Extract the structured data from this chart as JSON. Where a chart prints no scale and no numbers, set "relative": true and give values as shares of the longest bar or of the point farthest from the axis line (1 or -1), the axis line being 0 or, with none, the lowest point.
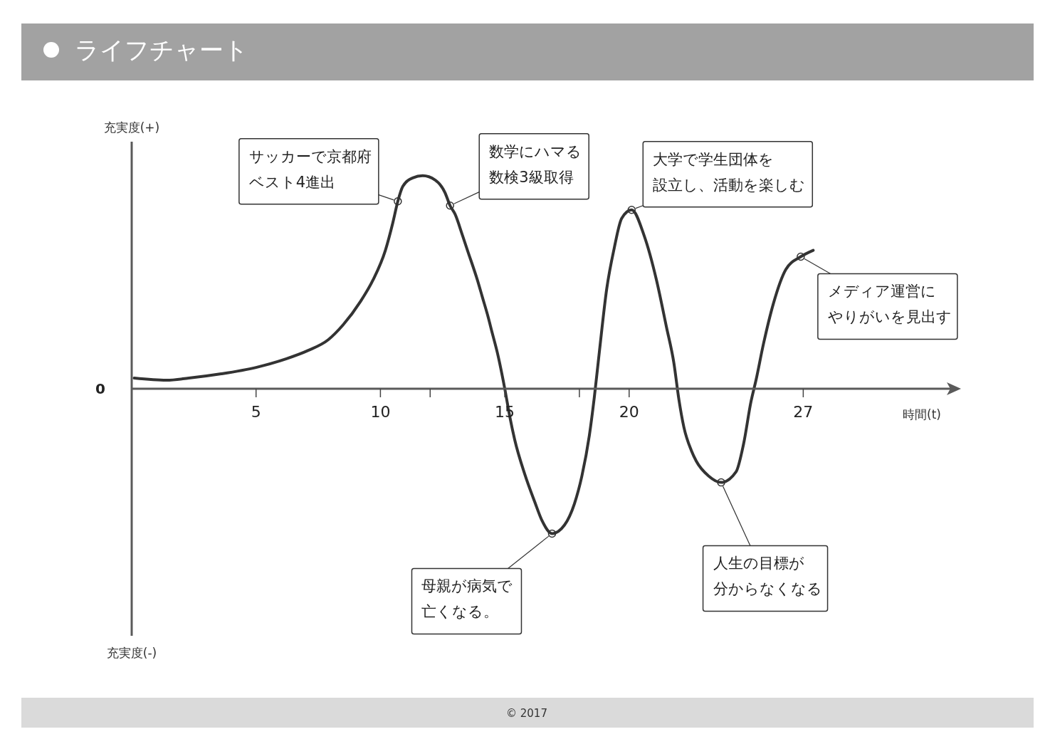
{
  "chart_data": {
    "type": "line",
    "title": "ライフチャート",
    "xlabel": "時間(t)",
    "ylabel": "充実度(+)",
    "relative": true,
    "x": [
      0.1,
      1.4,
      2.3,
      3.6,
      5.0,
      6.2,
      7.1,
      7.9,
      8.5,
      9.2,
      9.7,
      10.2,
      10.5,
      10.7,
      10.9,
      11.3,
      11.7,
      12.2,
      12.6,
      12.8,
      13.0,
      13.3,
      13.5,
      13.9,
      14.1,
      14.3,
      14.5,
      14.7,
      15.0,
      15.2,
      15.4,
      15.8,
      16.2,
      16.5,
      16.9,
      17.4,
      17.8,
      18.1,
      18.4,
      18.6,
      18.8,
      19.1,
      19.4,
      19.7,
      20.1,
      20.6,
      21.1,
      21.5,
      21.8,
      22.0,
      22.2,
      22.5,
      22.7,
      23.2,
      23.7,
      24.3,
      24.6,
      24.9,
      25.1,
      25.4,
      25.8,
      26.3,
      26.9,
      27.4
    ],
    "series": [
      {
        "color": "#333333",
        "values": [
          0.05,
          0.04,
          0.05,
          0.07,
          0.1,
          0.14,
          0.18,
          0.23,
          0.3,
          0.41,
          0.51,
          0.65,
          0.78,
          0.88,
          0.95,
          0.99,
          1,
          0.98,
          0.92,
          0.86,
          0.82,
          0.72,
          0.65,
          0.51,
          0.43,
          0.35,
          0.26,
          0.17,
          0,
          -0.13,
          -0.24,
          -0.4,
          -0.53,
          -0.62,
          -0.68,
          -0.64,
          -0.54,
          -0.41,
          -0.22,
          -0.04,
          0.17,
          0.47,
          0.66,
          0.8,
          0.84,
          0.72,
          0.51,
          0.29,
          0.12,
          -0.05,
          -0.18,
          -0.29,
          -0.34,
          -0.41,
          -0.44,
          -0.39,
          -0.26,
          -0.06,
          0.04,
          0.21,
          0.4,
          0.56,
          0.62,
          0.65
        ]
      }
    ],
    "xlim": [
      0,
      33
    ],
    "xticks": [
      5,
      10,
      {
        "value": 12,
        "label": null
      },
      15,
      {
        "value": 18,
        "label": null
      },
      20,
      27
    ],
    "annotations": [
      {
        "text": "サッカーで京都府ベスト4進出",
        "x": 10.7,
        "y": 0.88
      },
      {
        "text": "数学にハマる数検3級取得",
        "x": 12.8,
        "y": 0.86
      },
      {
        "text": "母親が病気で亡くなる。",
        "x": 16.9,
        "y": -0.68
      },
      {
        "text": "大学で学生団体を設立し、活動を楽しむ",
        "x": 20.1,
        "y": 0.84
      },
      {
        "text": "人生の目標が分からなくなる",
        "x": 23.7,
        "y": -0.44
      },
      {
        "text": "メディア運営にやりがいを見出す",
        "x": 26.9,
        "y": 0.62
      },
      "0",
      "充実度(-)",
      "© 2017"
    ]
  }
}
